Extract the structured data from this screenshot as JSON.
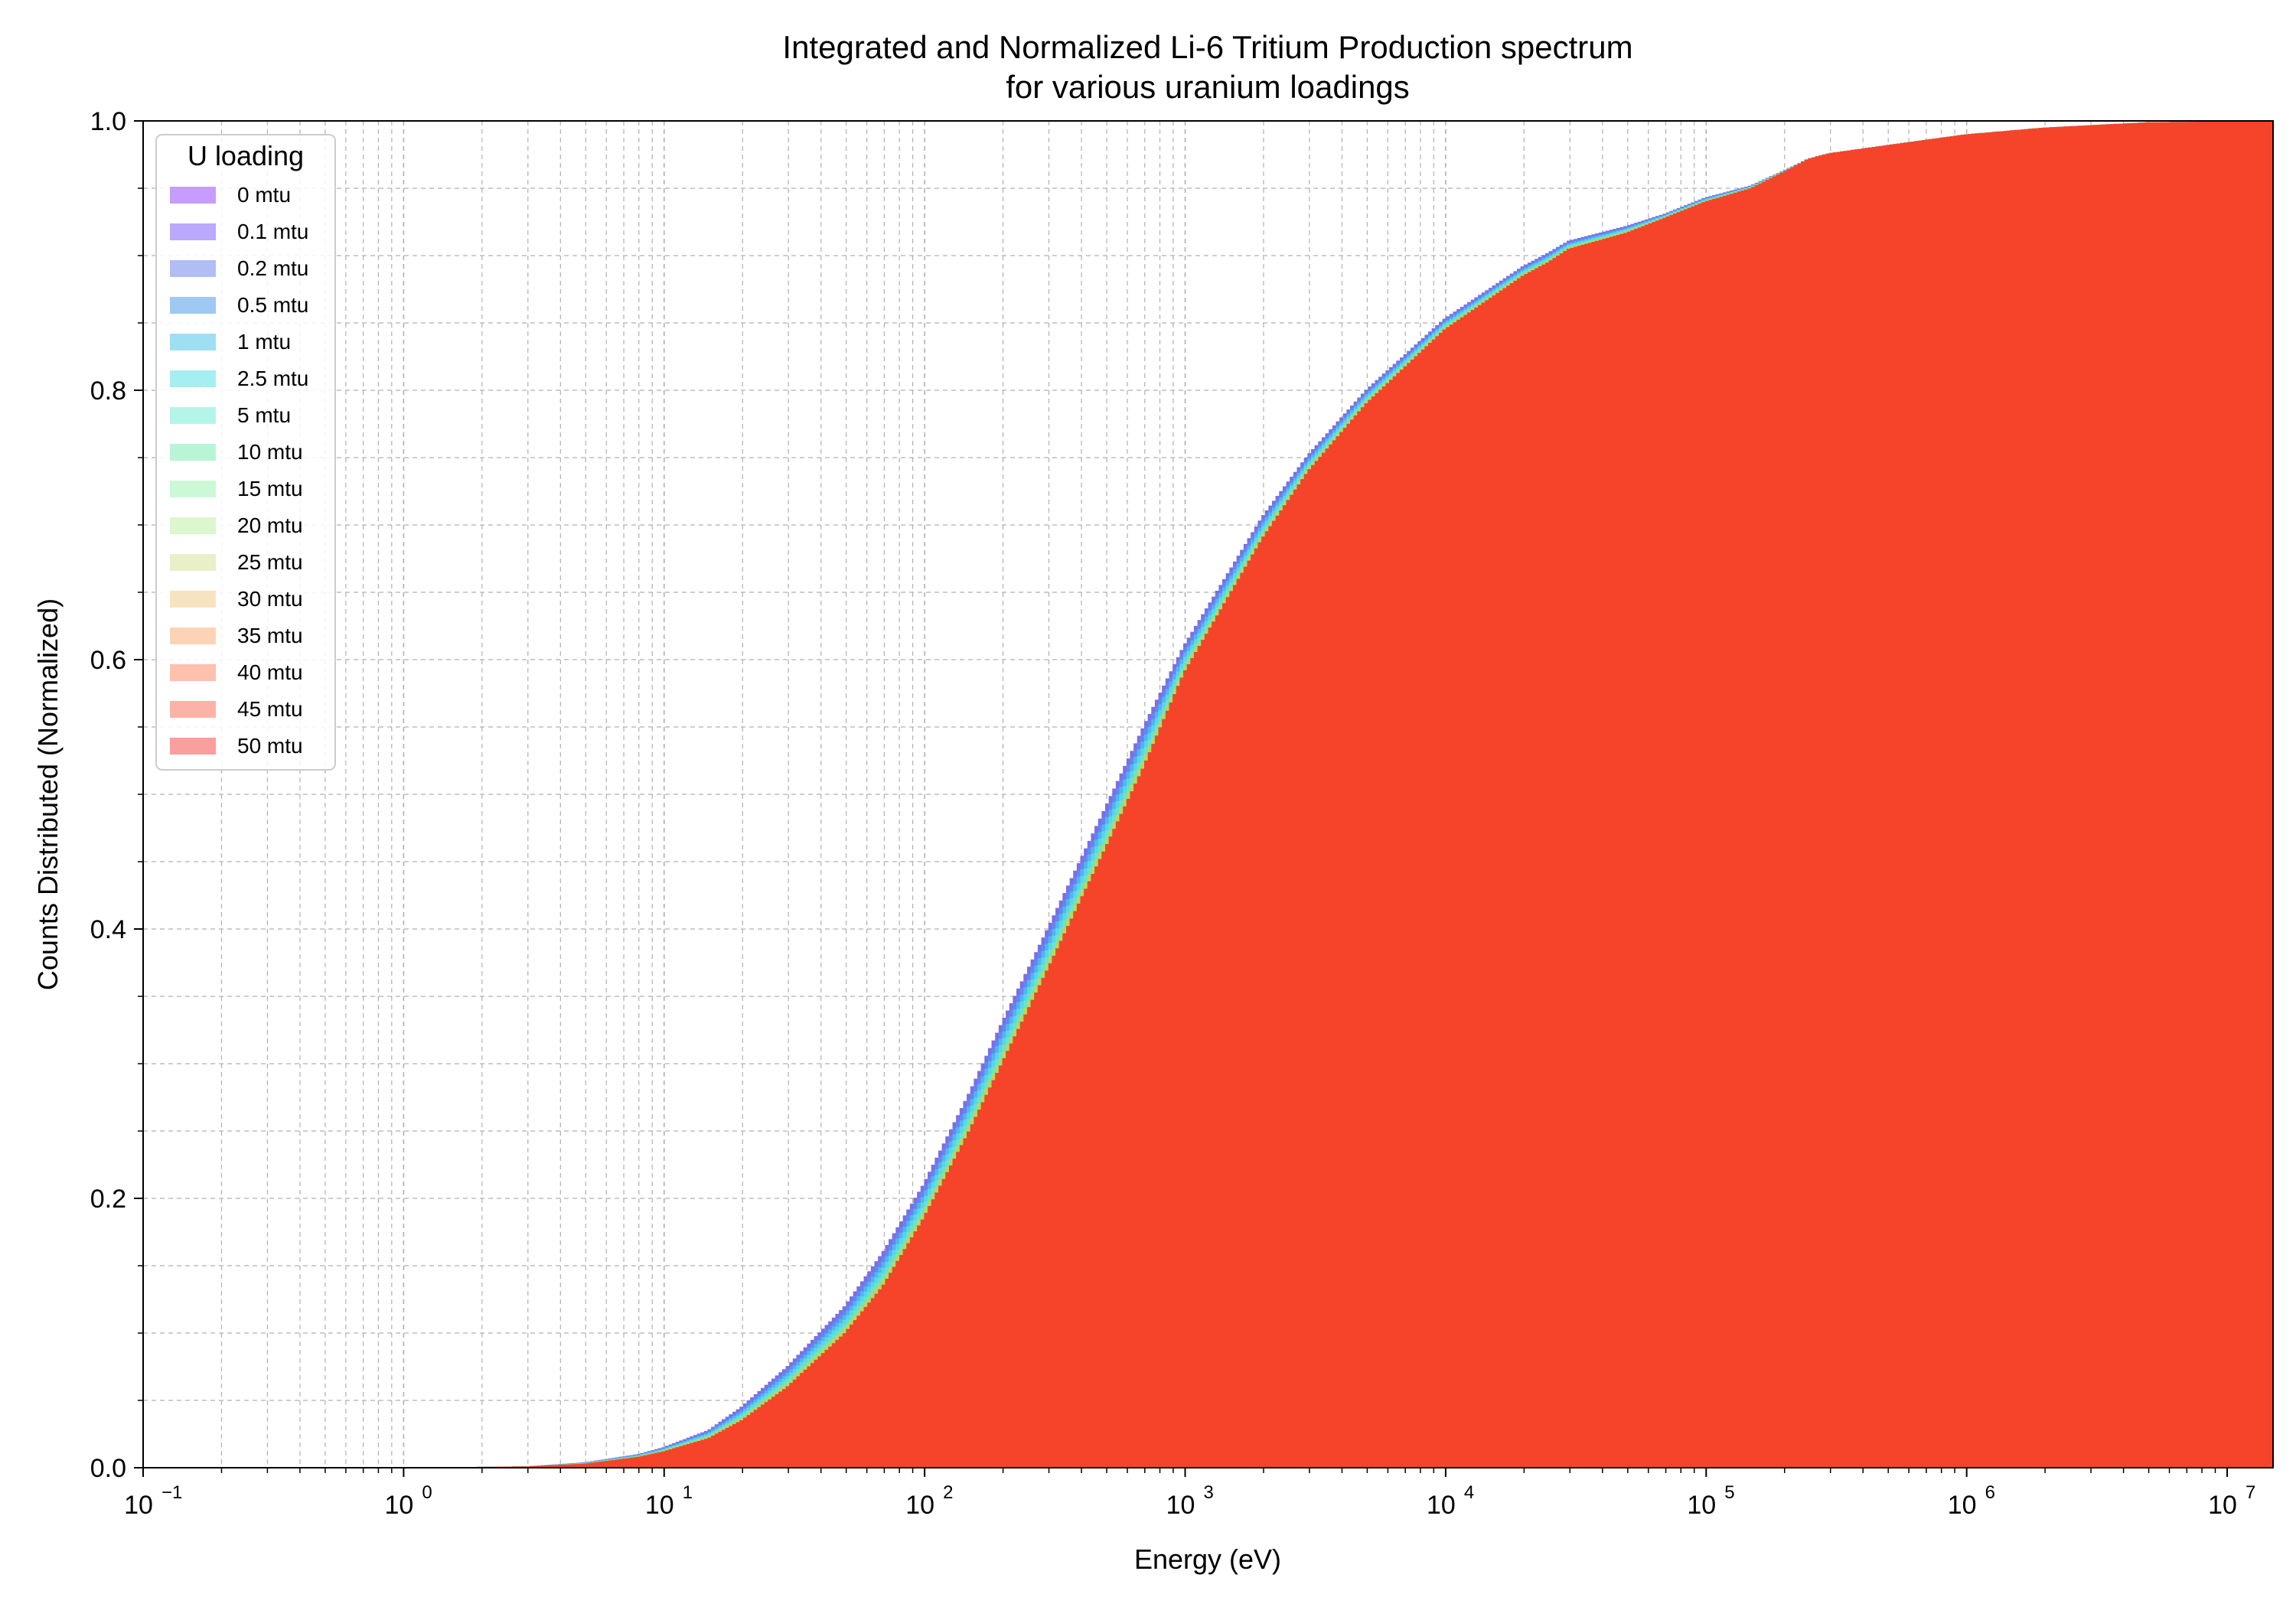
{
  "chart_data": {
    "type": "area",
    "title_line1": "Integrated and Normalized Li-6 Tritium Production spectrum",
    "title_line2": "for various uranium loadings",
    "xlabel": "Energy (eV)",
    "ylabel": "Counts Distributed (Normalized)",
    "x_scale": "log",
    "xlim": [
      0.1,
      15000000
    ],
    "ylim": [
      0,
      1.0
    ],
    "grid": "on (major and minor, dashed)",
    "x_ticks": [
      {
        "base": "10",
        "exp": "−1"
      },
      {
        "base": "10",
        "exp": "0"
      },
      {
        "base": "10",
        "exp": "1"
      },
      {
        "base": "10",
        "exp": "2"
      },
      {
        "base": "10",
        "exp": "3"
      },
      {
        "base": "10",
        "exp": "4"
      },
      {
        "base": "10",
        "exp": "5"
      },
      {
        "base": "10",
        "exp": "6"
      },
      {
        "base": "10",
        "exp": "7"
      }
    ],
    "y_ticks": [
      "0.0",
      "0.2",
      "0.4",
      "0.6",
      "0.8",
      "1.0"
    ],
    "legend": {
      "title": "U loading",
      "placement": "upper-left",
      "entries": [
        {
          "label": "0 mtu",
          "color": "#c79cff"
        },
        {
          "label": "0.1 mtu",
          "color": "#bba9fb"
        },
        {
          "label": "0.2 mtu",
          "color": "#b1bdf5"
        },
        {
          "label": "0.5 mtu",
          "color": "#9fc9f2"
        },
        {
          "label": "1 mtu",
          "color": "#9ee0f2"
        },
        {
          "label": "2.5 mtu",
          "color": "#a6eef0"
        },
        {
          "label": "5 mtu",
          "color": "#b3f6e9"
        },
        {
          "label": "10 mtu",
          "color": "#b8f5d6"
        },
        {
          "label": "15 mtu",
          "color": "#cbf8d6"
        },
        {
          "label": "20 mtu",
          "color": "#dcf6cd"
        },
        {
          "label": "25 mtu",
          "color": "#e9f0c7"
        },
        {
          "label": "30 mtu",
          "color": "#f8e3c0"
        },
        {
          "label": "35 mtu",
          "color": "#fdd3b6"
        },
        {
          "label": "40 mtu",
          "color": "#fdc1ae"
        },
        {
          "label": "45 mtu",
          "color": "#fcb2a6"
        },
        {
          "label": "50 mtu",
          "color": "#fb9e9e"
        }
      ]
    },
    "series_fill_colors": {
      "front": "#f5442a",
      "edge_layers": [
        "#c3d35a",
        "#6fe3c0",
        "#55d8e6",
        "#4fb6ee",
        "#5d8ae8",
        "#7c6cf0"
      ]
    },
    "series": [
      {
        "name": "50 mtu",
        "x": [
          0.1,
          1,
          3,
          5,
          8,
          10,
          15,
          20,
          30,
          50,
          70,
          100,
          150,
          200,
          300,
          500,
          700,
          1000,
          2000,
          3000,
          5000,
          10000,
          20000,
          25000,
          30000,
          50000,
          70000,
          100000,
          150000,
          200000,
          250000,
          300000,
          500000,
          1000000,
          2000000,
          5000000,
          15000000
        ],
        "y": [
          0.0,
          0.0,
          0.001,
          0.003,
          0.008,
          0.012,
          0.022,
          0.035,
          0.06,
          0.1,
          0.135,
          0.185,
          0.25,
          0.3,
          0.37,
          0.46,
          0.52,
          0.59,
          0.69,
          0.74,
          0.79,
          0.845,
          0.885,
          0.895,
          0.905,
          0.917,
          0.928,
          0.94,
          0.95,
          0.962,
          0.972,
          0.976,
          0.982,
          0.99,
          0.995,
          0.999,
          1.0
        ]
      },
      {
        "name": "0 mtu",
        "x": [
          0.1,
          1,
          3,
          5,
          8,
          10,
          15,
          20,
          30,
          50,
          70,
          100,
          150,
          200,
          300,
          500,
          700,
          1000,
          2000,
          3000,
          5000,
          10000,
          20000,
          25000,
          30000,
          50000,
          70000,
          100000,
          150000,
          200000,
          250000,
          300000,
          500000,
          1000000,
          2000000,
          5000000,
          15000000
        ],
        "y": [
          0.0,
          0.0,
          0.001,
          0.004,
          0.01,
          0.015,
          0.028,
          0.045,
          0.075,
          0.12,
          0.16,
          0.21,
          0.278,
          0.33,
          0.4,
          0.49,
          0.55,
          0.61,
          0.706,
          0.752,
          0.8,
          0.853,
          0.892,
          0.902,
          0.911,
          0.922,
          0.931,
          0.943,
          0.952,
          0.963,
          0.972,
          0.976,
          0.982,
          0.99,
          0.995,
          0.999,
          1.0
        ]
      }
    ]
  }
}
